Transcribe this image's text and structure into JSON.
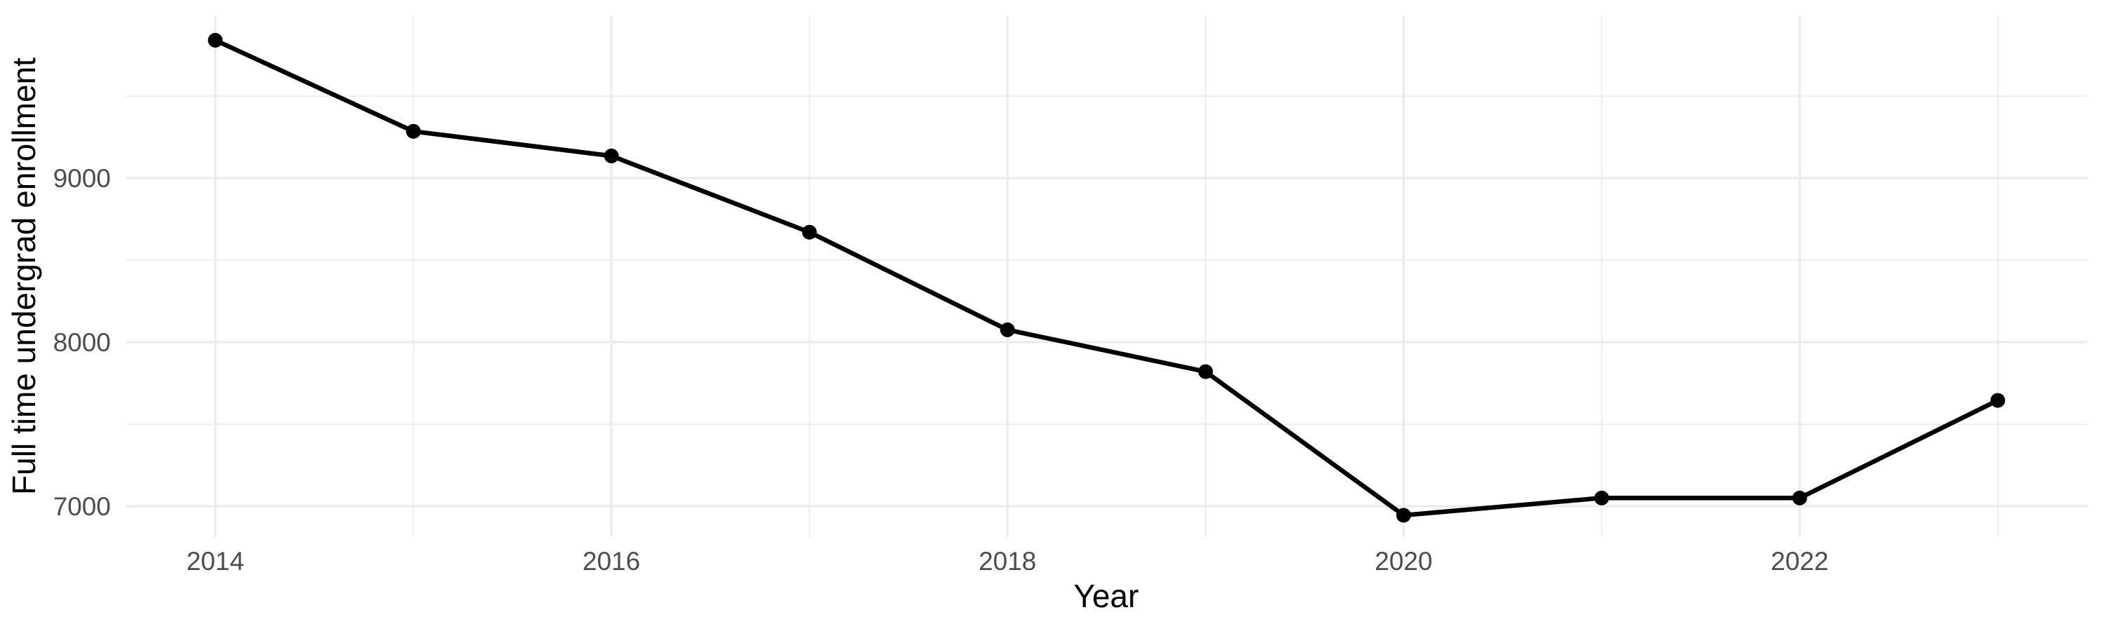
{
  "chart_data": {
    "type": "line",
    "title": "",
    "xlabel": "Year",
    "ylabel": "Full time undergrad enrollment",
    "x": [
      2014,
      2015,
      2016,
      2017,
      2018,
      2019,
      2020,
      2021,
      2022,
      2023
    ],
    "series": [
      {
        "name": "Full time undergrad enrollment",
        "values": [
          9840,
          9285,
          9135,
          8670,
          8075,
          7820,
          6945,
          7050,
          7050,
          7645
        ]
      }
    ],
    "x_major_ticks": [
      2014,
      2016,
      2018,
      2020,
      2022
    ],
    "x_tick_labels": [
      "2014",
      "2016",
      "2018",
      "2020",
      "2022"
    ],
    "x_minor_ticks": [
      2015,
      2017,
      2019,
      2021,
      2023
    ],
    "y_major_ticks": [
      7000,
      8000,
      9000
    ],
    "y_tick_labels": [
      "7000",
      "8000",
      "9000"
    ],
    "y_minor_ticks": [
      7500,
      8500,
      9500
    ],
    "xlim": [
      2013.55,
      2023.45
    ],
    "ylim": [
      6812,
      9987
    ],
    "grid": true,
    "legend": false,
    "marker": "circle",
    "marker_radius_px": 10.5,
    "colors": {
      "line": "#000000",
      "point": "#000000",
      "grid": "#EBEBEB",
      "tick_label": "#4D4D4D",
      "axis_title": "#000000",
      "background": "#FFFFFF"
    }
  }
}
